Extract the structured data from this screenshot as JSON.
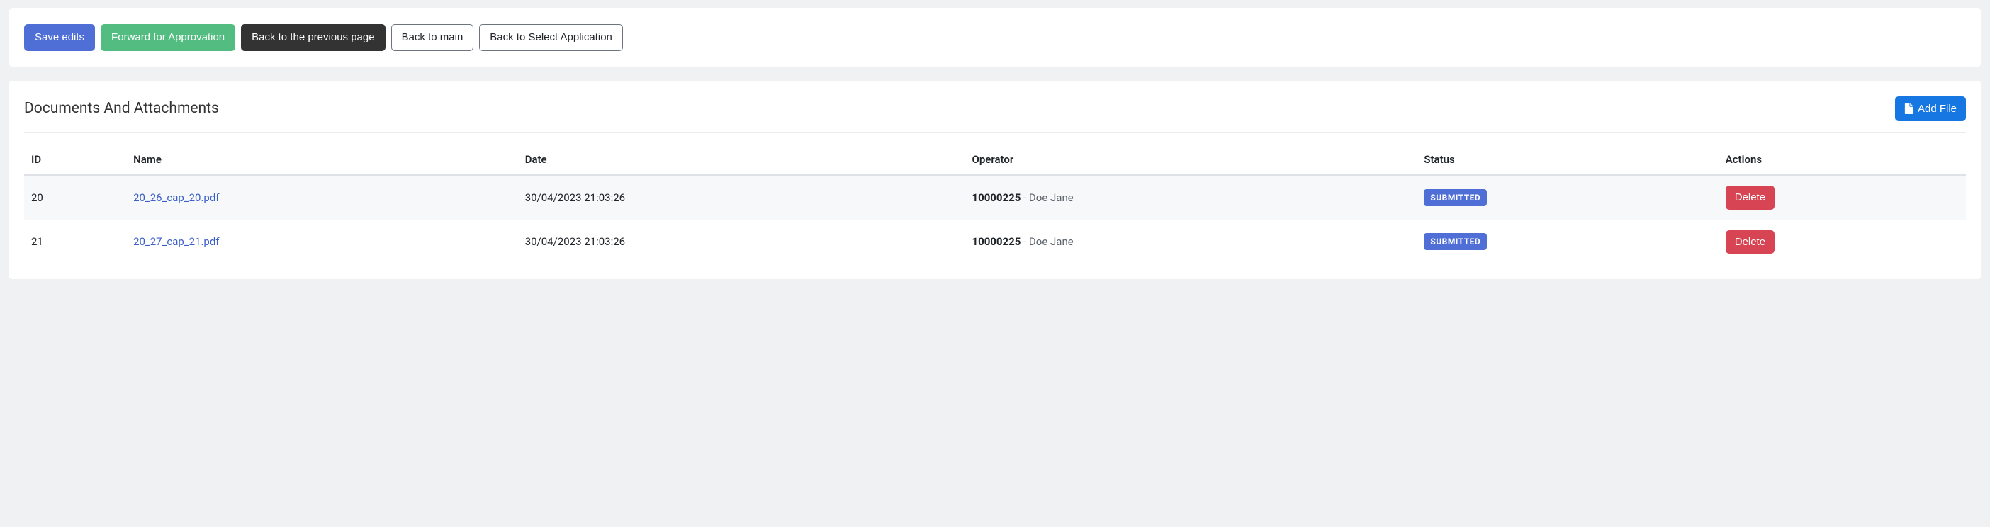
{
  "toolbar": {
    "save_label": "Save edits",
    "forward_label": "Forward for Approvation",
    "back_prev_label": "Back to the previous page",
    "back_main_label": "Back to main",
    "back_select_label": "Back to Select Application"
  },
  "documents": {
    "title": "Documents And Attachments",
    "add_file_label": "Add File",
    "columns": {
      "id": "ID",
      "name": "Name",
      "date": "Date",
      "operator": "Operator",
      "status": "Status",
      "actions": "Actions"
    },
    "rows": [
      {
        "id": "20",
        "name": "20_26_cap_20.pdf",
        "date": "30/04/2023 21:03:26",
        "operator_id": "10000225",
        "operator_name": "Doe Jane",
        "status": "SUBMITTED",
        "delete_label": "Delete"
      },
      {
        "id": "21",
        "name": "20_27_cap_21.pdf",
        "date": "30/04/2023 21:03:26",
        "operator_id": "10000225",
        "operator_name": "Doe Jane",
        "status": "SUBMITTED",
        "delete_label": "Delete"
      }
    ]
  },
  "colors": {
    "primary": "#4f6ed6",
    "success": "#53bd81",
    "dark": "#333333",
    "add": "#1677e2",
    "delete": "#d74453",
    "link": "#3b5fc9",
    "bg": "#f0f1f3",
    "card_bg": "#ffffff",
    "row_stripe": "#f7f8f9",
    "border": "#e9ecef"
  }
}
